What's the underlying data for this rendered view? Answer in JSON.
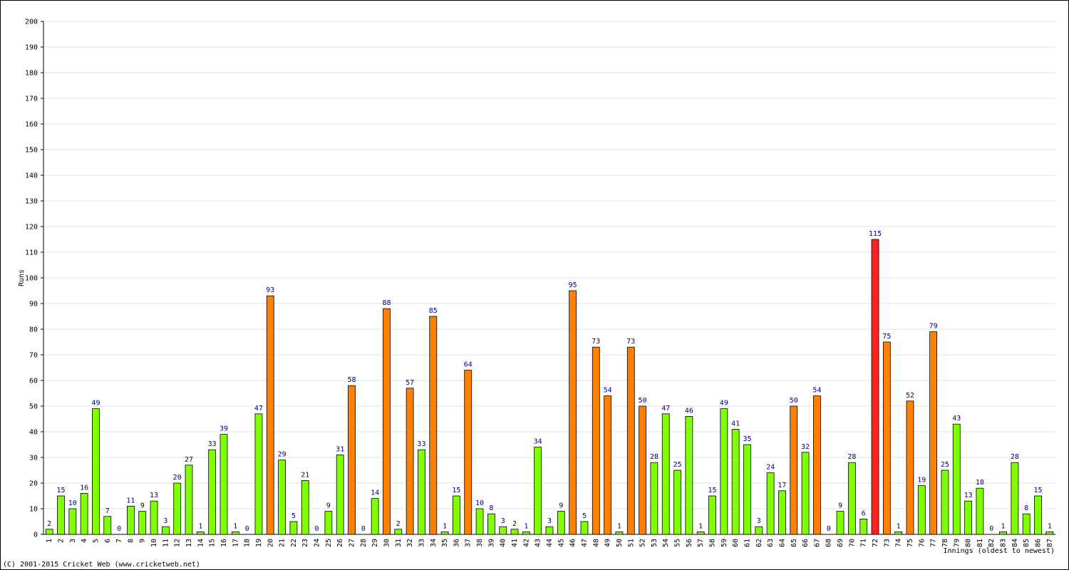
{
  "chart_data": {
    "type": "bar",
    "y_label": "Runs",
    "x_label": "Innings (oldest to newest)",
    "footer": "(C) 2001-2015 Cricket Web (www.cricketweb.net)",
    "categories": [
      "1",
      "2",
      "3",
      "4",
      "5",
      "6",
      "7",
      "8",
      "9",
      "10",
      "11",
      "12",
      "13",
      "14",
      "15",
      "16",
      "17",
      "18",
      "19",
      "20",
      "21",
      "22",
      "23",
      "24",
      "25",
      "26",
      "27",
      "28",
      "29",
      "30",
      "31",
      "32",
      "33",
      "34",
      "35",
      "36",
      "37",
      "38",
      "39",
      "40",
      "41",
      "42",
      "43",
      "44",
      "45",
      "46",
      "47",
      "48",
      "49",
      "50",
      "51",
      "52",
      "53",
      "54",
      "55",
      "56",
      "57",
      "58",
      "59",
      "60",
      "61",
      "62",
      "63",
      "64",
      "65",
      "66",
      "67",
      "68",
      "69",
      "70",
      "71",
      "72",
      "73",
      "74",
      "75",
      "76",
      "77",
      "78",
      "79",
      "80",
      "81",
      "82",
      "83",
      "84",
      "85",
      "86",
      "87"
    ],
    "values": [
      2,
      15,
      10,
      16,
      49,
      7,
      0,
      11,
      9,
      13,
      3,
      20,
      27,
      1,
      33,
      39,
      1,
      0,
      47,
      93,
      29,
      5,
      21,
      0,
      9,
      31,
      58,
      0,
      14,
      88,
      2,
      57,
      33,
      85,
      1,
      15,
      64,
      10,
      8,
      3,
      2,
      1,
      34,
      3,
      9,
      95,
      5,
      73,
      54,
      1,
      73,
      50,
      28,
      47,
      25,
      46,
      1,
      15,
      49,
      41,
      35,
      3,
      24,
      17,
      50,
      32,
      54,
      0,
      9,
      28,
      6,
      115,
      75,
      1,
      52,
      19,
      79,
      25,
      43,
      13,
      18,
      0,
      1,
      28,
      8,
      15,
      1
    ],
    "colors": [
      "#80ff00",
      "#80ff00",
      "#80ff00",
      "#80ff00",
      "#80ff00",
      "#80ff00",
      "#80ff00",
      "#80ff00",
      "#80ff00",
      "#80ff00",
      "#80ff00",
      "#80ff00",
      "#80ff00",
      "#80ff00",
      "#80ff00",
      "#80ff00",
      "#80ff00",
      "#80ff00",
      "#80ff00",
      "#ff8000",
      "#80ff00",
      "#80ff00",
      "#80ff00",
      "#80ff00",
      "#80ff00",
      "#80ff00",
      "#ff8000",
      "#80ff00",
      "#80ff00",
      "#ff8000",
      "#80ff00",
      "#ff8000",
      "#80ff00",
      "#ff8000",
      "#80ff00",
      "#80ff00",
      "#ff8000",
      "#80ff00",
      "#80ff00",
      "#80ff00",
      "#80ff00",
      "#80ff00",
      "#80ff00",
      "#80ff00",
      "#80ff00",
      "#ff8000",
      "#80ff00",
      "#ff8000",
      "#ff8000",
      "#80ff00",
      "#ff8000",
      "#ff8000",
      "#80ff00",
      "#80ff00",
      "#80ff00",
      "#80ff00",
      "#80ff00",
      "#80ff00",
      "#80ff00",
      "#80ff00",
      "#80ff00",
      "#80ff00",
      "#80ff00",
      "#80ff00",
      "#ff8000",
      "#80ff00",
      "#ff8000",
      "#80ff00",
      "#80ff00",
      "#80ff00",
      "#80ff00",
      "#ff2020",
      "#ff8000",
      "#80ff00",
      "#ff8000",
      "#80ff00",
      "#ff8000",
      "#80ff00",
      "#80ff00",
      "#80ff00",
      "#80ff00",
      "#80ff00",
      "#80ff00",
      "#80ff00",
      "#80ff00",
      "#80ff00",
      "#80ff00"
    ],
    "ylim": [
      0,
      200
    ],
    "yticks": [
      0,
      10,
      20,
      30,
      40,
      50,
      60,
      70,
      80,
      90,
      100,
      110,
      120,
      130,
      140,
      150,
      160,
      170,
      180,
      190,
      200
    ],
    "grid": true
  }
}
